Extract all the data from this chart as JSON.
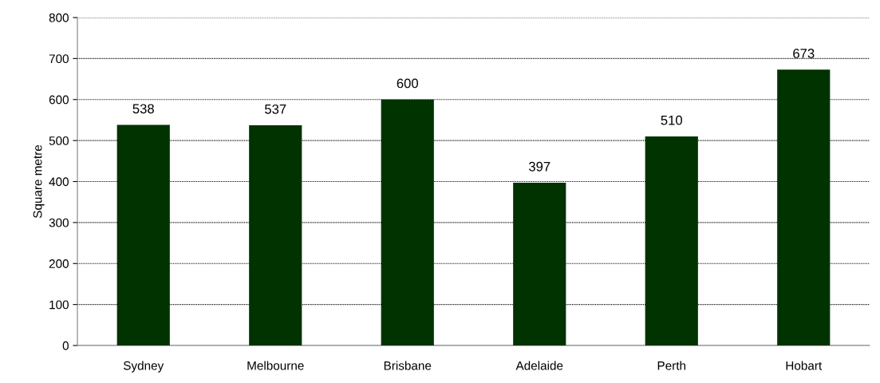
{
  "chart_data": {
    "type": "bar",
    "ylabel": "Square metre",
    "categories": [
      "Sydney",
      "Melbourne",
      "Brisbane",
      "Adelaide",
      "Perth",
      "Hobart"
    ],
    "values": [
      538,
      537,
      600,
      397,
      510,
      673
    ],
    "color": "#003300",
    "ylim": [
      0,
      800
    ],
    "yticks": [
      0,
      100,
      200,
      300,
      400,
      500,
      600,
      700,
      800
    ],
    "grid": "y",
    "data_labels": true
  }
}
